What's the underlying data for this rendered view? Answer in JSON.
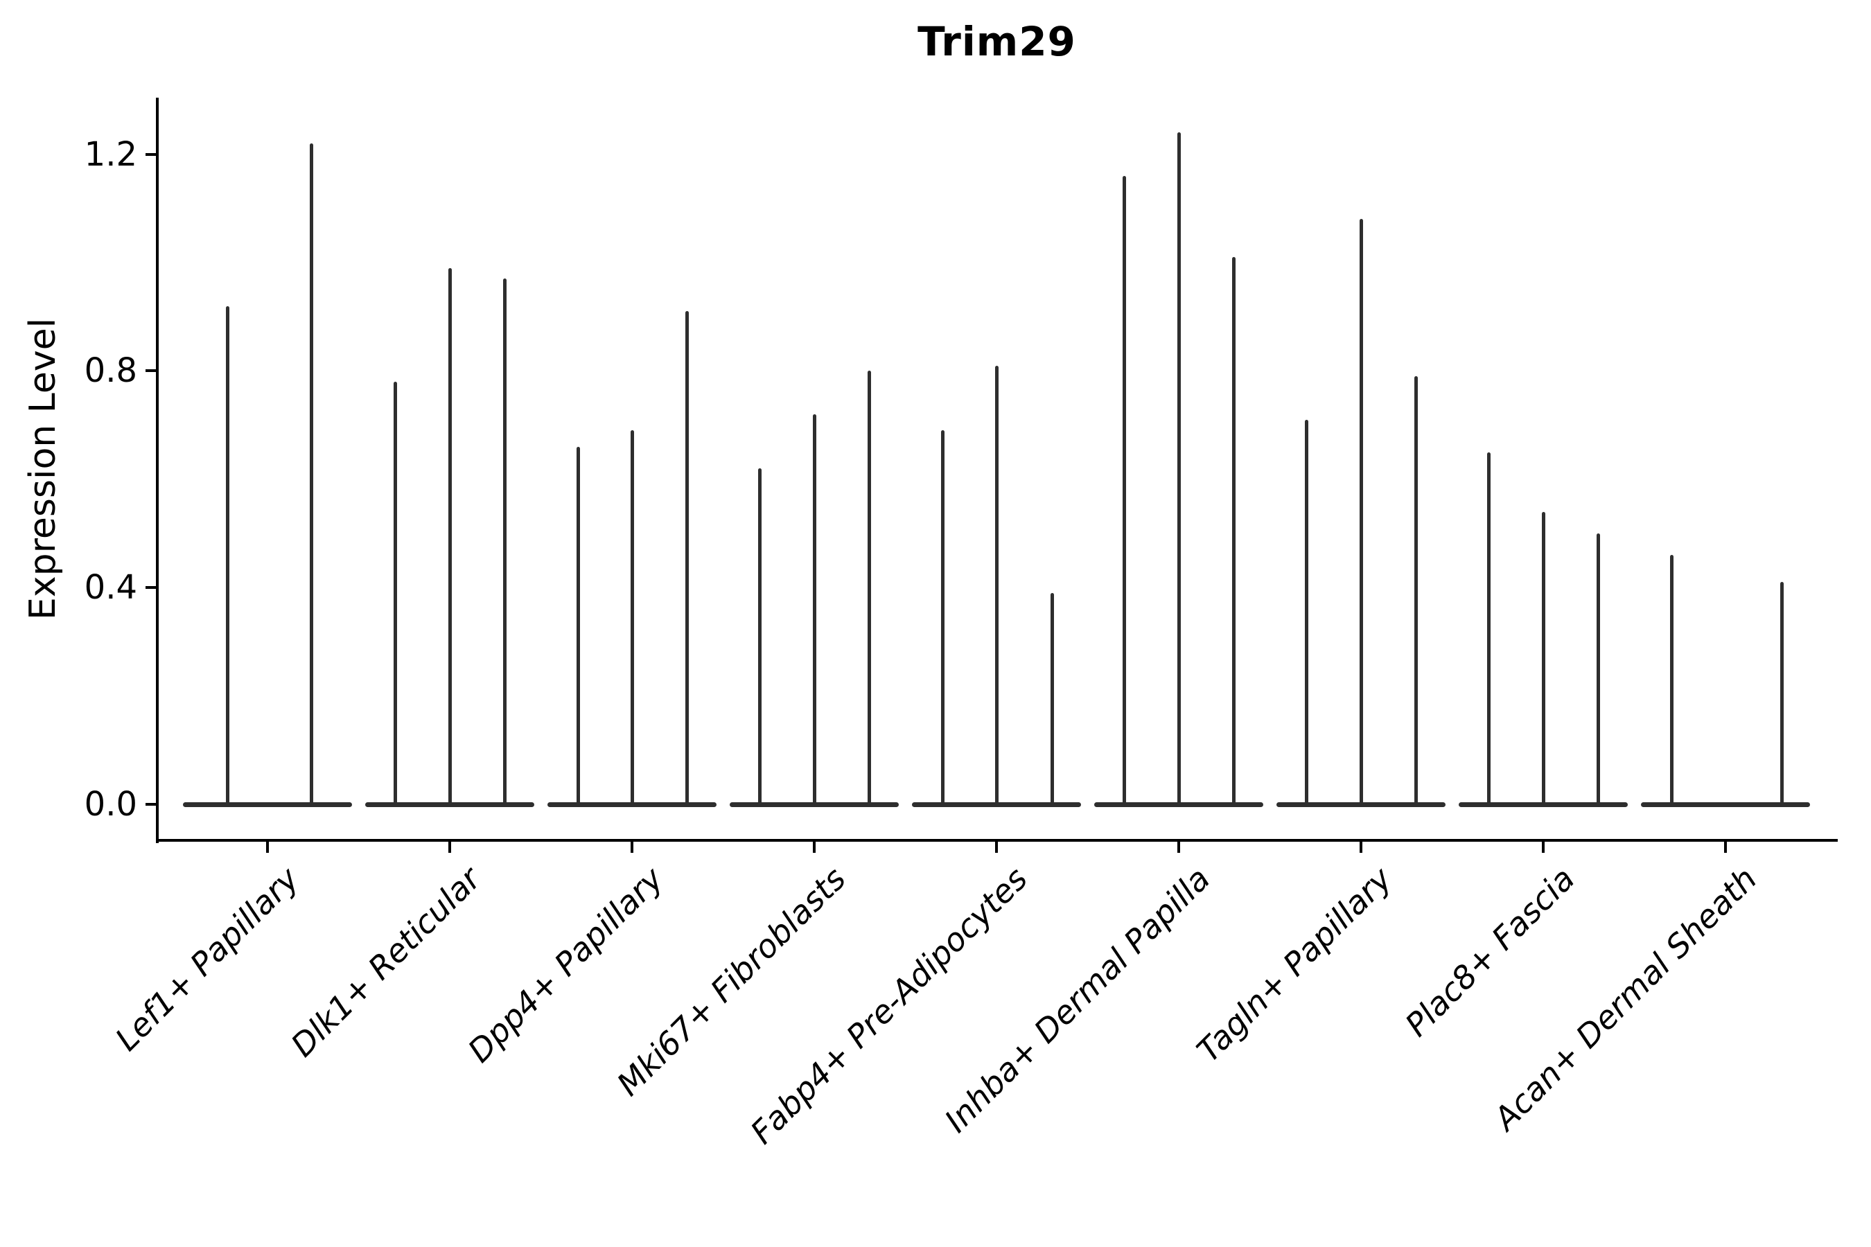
{
  "title": "Trim29",
  "yaxis": {
    "label": "Expression Level",
    "tick_labels": [
      "0.0",
      "0.4",
      "0.8",
      "1.2"
    ],
    "tick_values": [
      0.0,
      0.4,
      0.8,
      1.2
    ]
  },
  "colors": {
    "violin": "#2e2e2e",
    "spine": "#000000",
    "text": "#000000",
    "background": "#ffffff"
  },
  "chart_data": {
    "type": "violin",
    "title": "Trim29",
    "xlabel": "",
    "ylabel": "Expression Level",
    "ylim": [
      0,
      1.37
    ],
    "yticks": [
      0.0,
      0.4,
      0.8,
      1.2
    ],
    "grid": false,
    "legend": "none",
    "categories": [
      "Lef1+ Papillary",
      "Dlk1+ Reticular",
      "Dpp4+ Papillary",
      "Mki67+ Fibroblasts",
      "Fabp4+ Pre-Adipocytes",
      "Inhba+ Dermal Papilla",
      "Tagln+ Papillary",
      "Plac8+ Fascia",
      "Acan+ Dermal Sheath"
    ],
    "description": "Very narrow violins: dense mass at expression 0 (flat base) with thin spikes reaching the max expression of each sub-violin",
    "groups": [
      {
        "category": "Lef1+ Papillary",
        "violins": [
          {
            "pos": -58,
            "max": 0.92
          },
          {
            "pos": 63,
            "max": 1.22
          }
        ]
      },
      {
        "category": "Dlk1+ Reticular",
        "violins": [
          {
            "pos": -79,
            "max": 0.78
          },
          {
            "pos": 0,
            "max": 0.99
          },
          {
            "pos": 79,
            "max": 0.97
          }
        ]
      },
      {
        "category": "Dpp4+ Papillary",
        "violins": [
          {
            "pos": -78,
            "max": 0.66
          },
          {
            "pos": 0,
            "max": 0.69
          },
          {
            "pos": 79,
            "max": 0.91
          }
        ]
      },
      {
        "category": "Mki67+ Fibroblasts",
        "violins": [
          {
            "pos": -79,
            "max": 0.62
          },
          {
            "pos": 0,
            "max": 0.72
          },
          {
            "pos": 79,
            "max": 0.8
          }
        ]
      },
      {
        "category": "Fabp4+ Pre-Adipocytes",
        "violins": [
          {
            "pos": -78,
            "max": 0.69
          },
          {
            "pos": 0,
            "max": 0.81
          },
          {
            "pos": 80,
            "max": 0.39
          }
        ]
      },
      {
        "category": "Inhba+ Dermal Papilla",
        "violins": [
          {
            "pos": -79,
            "max": 1.16
          },
          {
            "pos": 0,
            "max": 1.24
          },
          {
            "pos": 79,
            "max": 1.01
          }
        ]
      },
      {
        "category": "Tagln+ Papillary",
        "violins": [
          {
            "pos": -79,
            "max": 0.71
          },
          {
            "pos": 0,
            "max": 1.08
          },
          {
            "pos": 79,
            "max": 0.79
          }
        ]
      },
      {
        "category": "Plac8+ Fascia",
        "violins": [
          {
            "pos": -79,
            "max": 0.65
          },
          {
            "pos": 0,
            "max": 0.54
          },
          {
            "pos": 79,
            "max": 0.5
          }
        ]
      },
      {
        "category": "Acan+ Dermal Sheath",
        "violins": [
          {
            "pos": -78,
            "max": 0.46
          },
          {
            "pos": 81,
            "max": 0.41
          }
        ]
      }
    ]
  }
}
